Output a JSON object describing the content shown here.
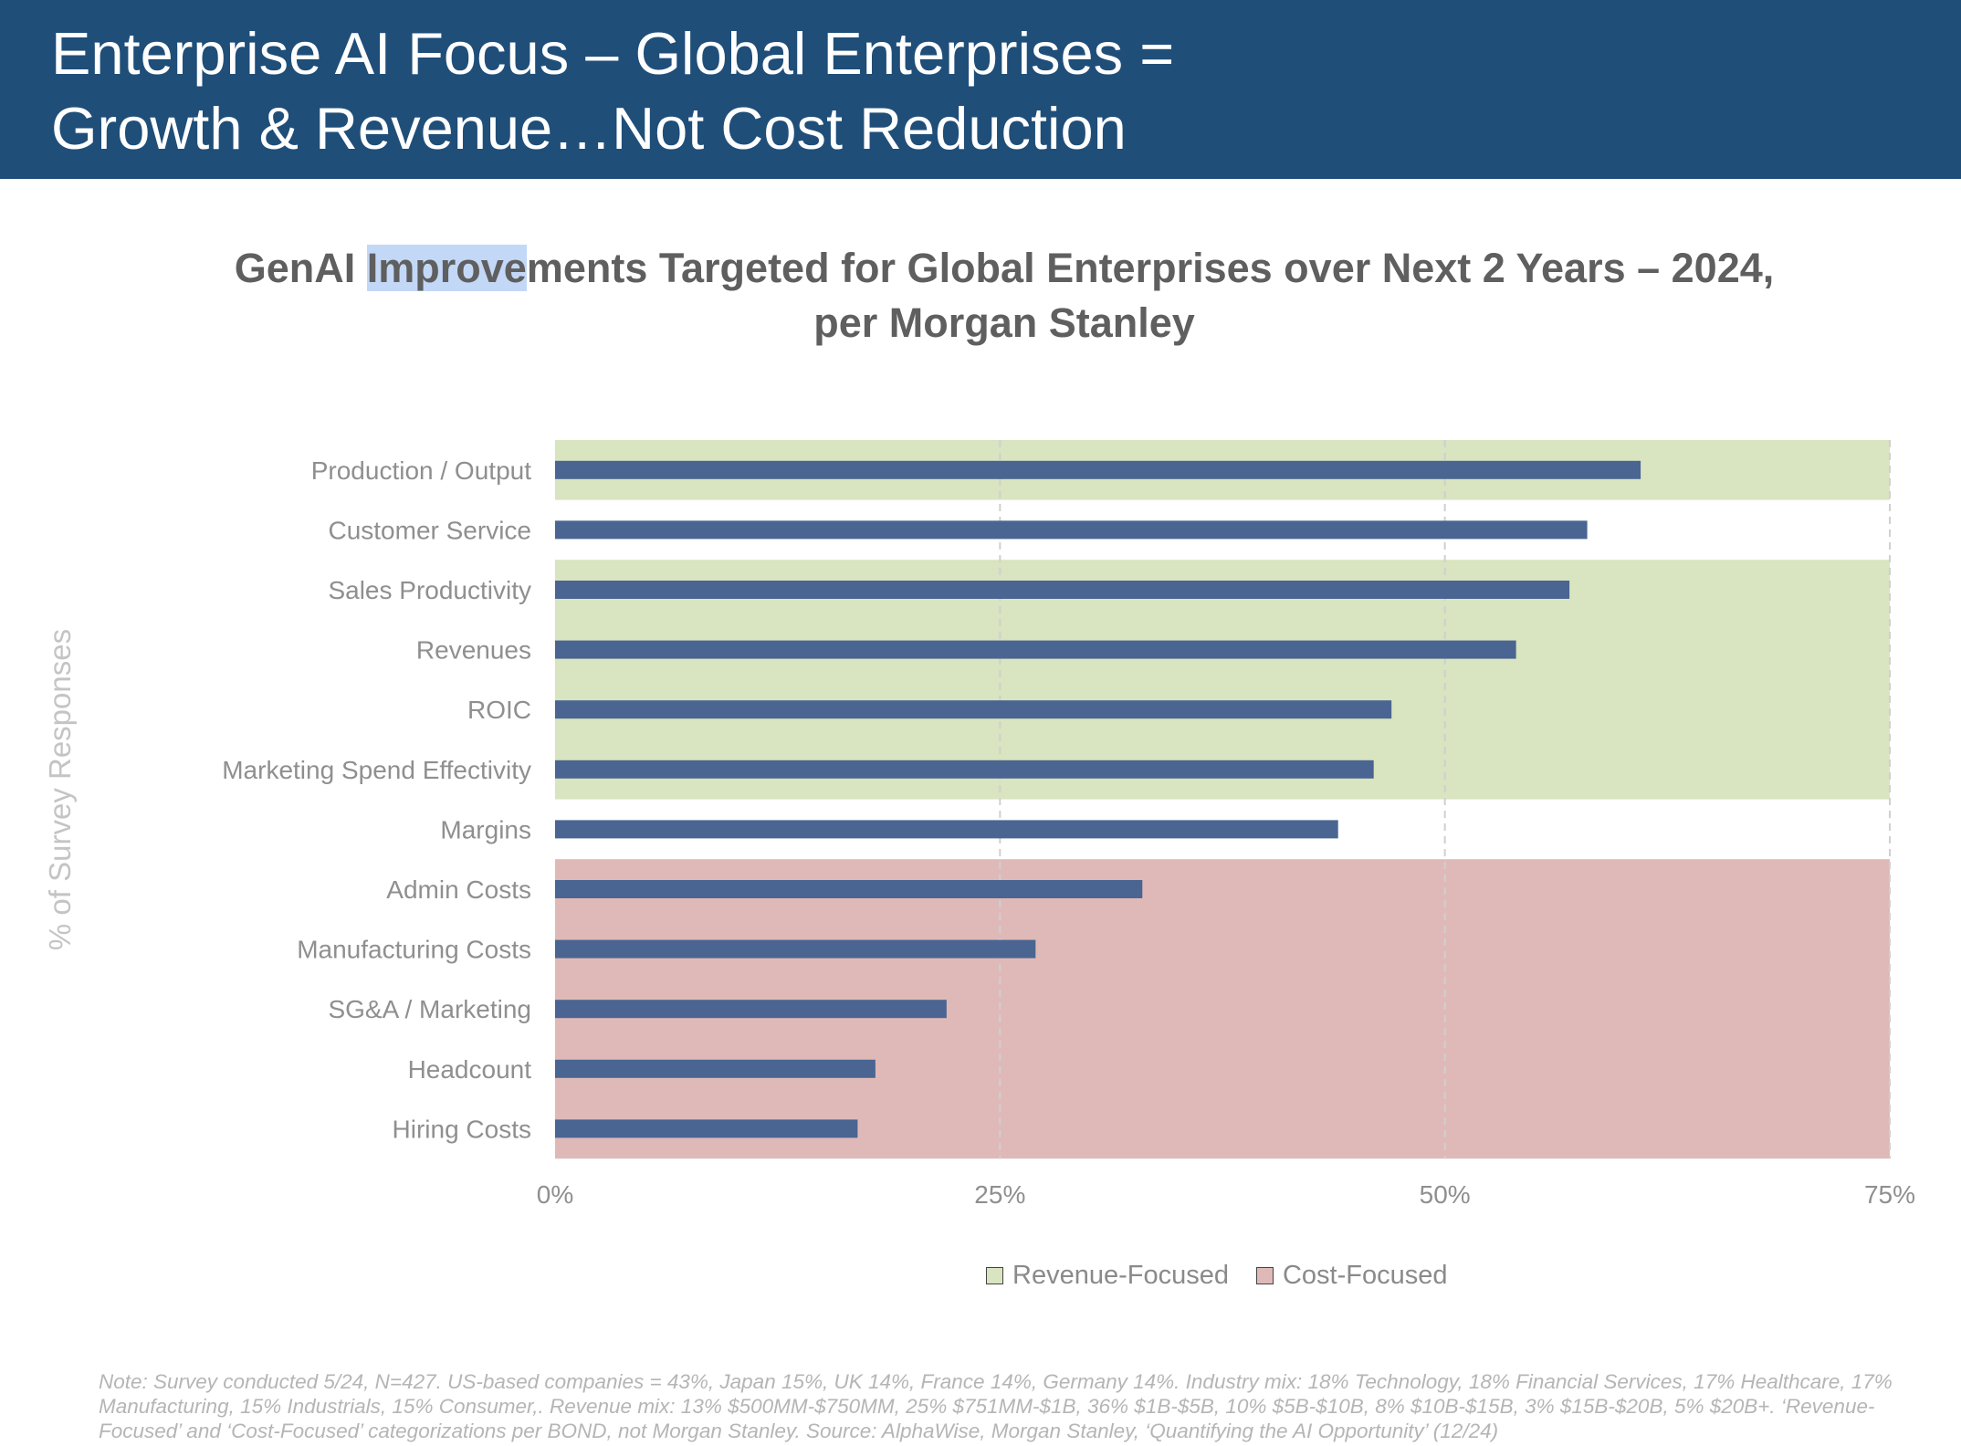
{
  "header": {
    "title": "Enterprise AI Focus – Global Enterprises =\nGrowth & Revenue…Not Cost Reduction",
    "background_color": "#1f4e79"
  },
  "chart_title": {
    "before": "GenAI ",
    "highlight": "Improve",
    "after": "ments Targeted for Global Enterprises over Next 2 Years – 2024,",
    "line2": "per Morgan Stanley"
  },
  "chart_data": {
    "type": "bar",
    "orientation": "horizontal",
    "title": "GenAI Improvements Targeted for Global Enterprises over Next 2 Years – 2024, per Morgan Stanley",
    "ylabel": "% of Survey Responses",
    "xlabel": "",
    "categories": [
      "Production / Output",
      "Customer Service",
      "Sales Productivity",
      "Revenues",
      "ROIC",
      "Marketing Spend Effectivity",
      "Margins",
      "Admin Costs",
      "Manufacturing Costs",
      "SG&A / Marketing",
      "Headcount",
      "Hiring Costs"
    ],
    "values": [
      61,
      58,
      57,
      54,
      47,
      46,
      44,
      33,
      27,
      22,
      18,
      17
    ],
    "xlim": [
      0,
      75
    ],
    "x_ticks": [
      0,
      25,
      50,
      75
    ],
    "x_tick_labels": [
      "0%",
      "25%",
      "50%",
      "75%"
    ],
    "grid": "vertical dashed",
    "bar_color": "#4a6591",
    "bands": [
      {
        "name": "Revenue-Focused",
        "categories": [
          "Production / Output"
        ],
        "color": "#d9e4c0"
      },
      {
        "name": "Revenue-Focused",
        "categories": [
          "Sales Productivity",
          "Revenues",
          "ROIC",
          "Marketing Spend Effectivity"
        ],
        "color": "#d9e4c0"
      },
      {
        "name": "Cost-Focused",
        "categories": [
          "Admin Costs",
          "Manufacturing Costs",
          "SG&A / Marketing",
          "Headcount",
          "Hiring Costs"
        ],
        "color": "#dfb9b8"
      }
    ],
    "legend": [
      {
        "label": "Revenue-Focused",
        "color": "#d9e4c0"
      },
      {
        "label": "Cost-Focused",
        "color": "#dfb9b8"
      }
    ],
    "legend_position": "bottom"
  },
  "footnote": "Note: Survey conducted 5/24, N=427. US-based companies = 43%, Japan 15%, UK 14%, France 14%, Germany 14%. Industry mix: 18% Technology, 18% Financial Services, 17% Healthcare, 17% Manufacturing, 15% Industrials, 15% Consumer,. Revenue mix: 13% $500MM-$750MM, 25% $751MM-$1B, 36% $1B-$5B, 10% $5B-$10B, 8% $10B-$15B, 3% $15B-$20B, 5% $20B+. ‘Revenue-Focused’ and ‘Cost-Focused’ categorizations per BOND, not Morgan Stanley. Source: AlphaWise, Morgan Stanley, ‘Quantifying the AI Opportunity’ (12/24)"
}
